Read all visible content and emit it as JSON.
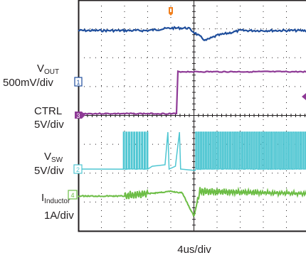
{
  "chart_data": {
    "type": "line",
    "title": "",
    "xlabel": "4us/div",
    "time_per_div_us": 4,
    "horizontal_divisions": 10,
    "vertical_divisions": 8,
    "x_range_us": [
      -20,
      20
    ],
    "grid": true,
    "channels": [
      {
        "id": "1",
        "name_main": "V",
        "name_sub": "OUT",
        "scale": "500mV/div",
        "color": "#1f4e9c",
        "points": [
          [
            -20,
            0
          ],
          [
            -8,
            0
          ],
          [
            -4,
            0.05
          ],
          [
            -1,
            0.05
          ],
          [
            2,
            -0.2
          ],
          [
            4,
            -0.1
          ],
          [
            8,
            0
          ],
          [
            20,
            0
          ]
        ]
      },
      {
        "id": "3",
        "name_main": "CTRL",
        "name_sub": "",
        "scale": "5V/div",
        "color": "#8e3a96",
        "points": [
          [
            -20,
            0
          ],
          [
            -2.8,
            0
          ],
          [
            -2.8,
            5
          ],
          [
            20,
            5
          ]
        ]
      },
      {
        "id": "2",
        "name_main": "V",
        "name_sub": "SW",
        "scale": "5V/div",
        "color": "#4fc6d2",
        "description": "switching node: burst pulses from -12us to -8us, idle to 0us, continuous switching after 0us"
      },
      {
        "id": "4",
        "name_main": "I",
        "name_sub": "Inductor",
        "scale": "1A/div",
        "color": "#6cbd45",
        "points": [
          [
            -20,
            0
          ],
          [
            -12,
            0
          ],
          [
            -4,
            0.3
          ],
          [
            -2,
            0.2
          ],
          [
            0,
            -1.3
          ],
          [
            1,
            0.3
          ],
          [
            20,
            0.15
          ]
        ]
      }
    ],
    "markers": [
      {
        "label": "T",
        "color": "#f07f1d"
      }
    ]
  }
}
